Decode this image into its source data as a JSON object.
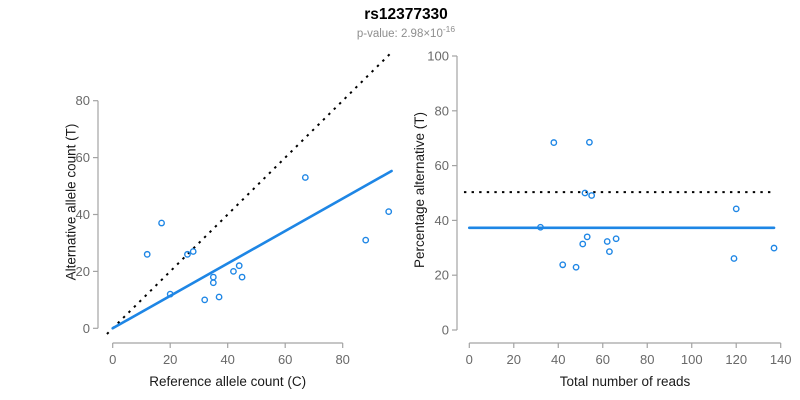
{
  "title": "rs12377330",
  "p_value": {
    "text": "p-value: 2.98×10",
    "exponent": "-16"
  },
  "colors": {
    "accent_blue": "#1E86E5",
    "dashed_black": "#000000",
    "axis_gray": "#a3a3a3",
    "tick_label_gray": "#696969",
    "axis_title_color": "#1a1a1a",
    "subtitle_gray": "#8e8e8e",
    "background": "#ffffff"
  },
  "chart_data": [
    {
      "type": "scatter",
      "name": "allele-counts-panel",
      "xlabel": "Reference allele count (C)",
      "ylabel": "Alternative allele count (T)",
      "xlim": [
        0,
        96
      ],
      "ylim": [
        0,
        96
      ],
      "xticks": [
        0,
        20,
        40,
        60,
        80
      ],
      "yticks": [
        0,
        20,
        40,
        60,
        80
      ],
      "grid": false,
      "points": [
        [
          12,
          26
        ],
        [
          17,
          37
        ],
        [
          20,
          12
        ],
        [
          26,
          26
        ],
        [
          28,
          27
        ],
        [
          32,
          10
        ],
        [
          35,
          16
        ],
        [
          35,
          18
        ],
        [
          37,
          11
        ],
        [
          42,
          20
        ],
        [
          44,
          22
        ],
        [
          45,
          18
        ],
        [
          67,
          53
        ],
        [
          88,
          31
        ],
        [
          96,
          41
        ]
      ],
      "lines": [
        {
          "name": "identity-line",
          "style": "dotted",
          "color": "black",
          "slope": 1,
          "intercept": 0,
          "x_start": -2,
          "x_end": 98.5
        },
        {
          "name": "fit-line",
          "style": "solid",
          "color": "blue",
          "slope": 0.57,
          "intercept": 0,
          "x_start": 0,
          "x_end": 97
        }
      ]
    },
    {
      "type": "scatter",
      "name": "percentage-vs-depth-panel",
      "xlabel": "Total number of reads",
      "ylabel": "Percentage alternative (T)",
      "xlim": [
        0,
        140
      ],
      "ylim": [
        0,
        100
      ],
      "xticks": [
        0,
        20,
        40,
        60,
        80,
        100,
        120,
        140
      ],
      "yticks": [
        0,
        20,
        40,
        60,
        80,
        100
      ],
      "grid": false,
      "points": [
        [
          38,
          68.4
        ],
        [
          54,
          68.5
        ],
        [
          32,
          37.5
        ],
        [
          52,
          50
        ],
        [
          55,
          49.1
        ],
        [
          42,
          23.8
        ],
        [
          51,
          31.4
        ],
        [
          53,
          34
        ],
        [
          48,
          22.9
        ],
        [
          62,
          32.3
        ],
        [
          66,
          33.3
        ],
        [
          63,
          28.6
        ],
        [
          120,
          44.2
        ],
        [
          119,
          26.1
        ],
        [
          137,
          29.9
        ]
      ],
      "lines": [
        {
          "name": "expected-50pct-line",
          "style": "dotted",
          "color": "black",
          "y": 50.3,
          "x_start": -2.4,
          "x_end": 137
        },
        {
          "name": "mean-percentage-line",
          "style": "solid",
          "color": "blue",
          "y": 37.3,
          "x_start": 0,
          "x_end": 137
        }
      ]
    }
  ]
}
